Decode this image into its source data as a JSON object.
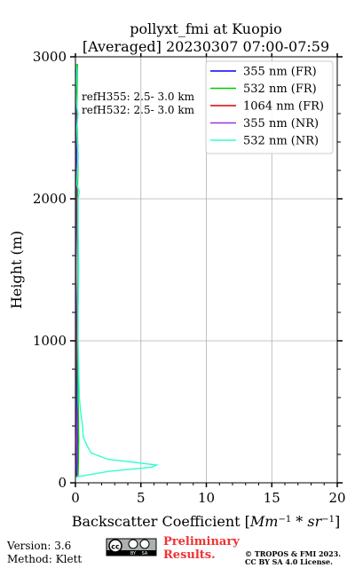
{
  "title_line1": "pollyxt_fmi at Kuopio",
  "title_line2": "[Averaged] 20230307 07:00-07:59",
  "annotation_line1": "refH355:  2.5- 3.0 km",
  "annotation_line2": "refH532:  2.5- 3.0 km",
  "footer": {
    "version": "Version: 3.6",
    "method": "Method: Klett",
    "preliminary_line1": "Preliminary",
    "preliminary_line2": "Results.",
    "copyright_line1": "© TROPOS & FMI 2023.",
    "copyright_line2": "CC BY SA 4.0 License.",
    "license_badge": "cc-by-sa-icon",
    "badge_sub1": "BY",
    "badge_sub2": "SA"
  },
  "chart_data": {
    "type": "line",
    "orientation": "vertical-profile",
    "xlabel_main": "Backscatter Coefficient [",
    "xlabel_unit_base1": "Mm",
    "xlabel_unit_sup1": "−1",
    "xlabel_unit_mid": " * ",
    "xlabel_unit_base2": "sr",
    "xlabel_unit_sup2": "−1",
    "xlabel_close": "]",
    "ylabel": "Height (m)",
    "xlim": [
      0,
      20
    ],
    "ylim": [
      0,
      3000
    ],
    "xticks": [
      "0",
      "5",
      "10",
      "15",
      "20"
    ],
    "xtick_values": [
      0,
      5,
      10,
      15,
      20
    ],
    "yticks": [
      "0",
      "1000",
      "2000",
      "3000"
    ],
    "ytick_values": [
      0,
      1000,
      2000,
      3000
    ],
    "grid": true,
    "legend_position": "top-right",
    "series": [
      {
        "name": "355 nm (FR)",
        "color": "#0000ff",
        "points": [
          [
            0.1,
            40
          ],
          [
            0.15,
            300
          ],
          [
            0.1,
            600
          ],
          [
            0.1,
            1000
          ],
          [
            0.05,
            1500
          ],
          [
            0.1,
            2000
          ],
          [
            0.08,
            2300
          ],
          [
            0.1,
            2600
          ],
          [
            0.05,
            2950
          ]
        ]
      },
      {
        "name": "532 nm (FR)",
        "color": "#00cc00",
        "points": [
          [
            0.2,
            40
          ],
          [
            0.25,
            300
          ],
          [
            0.2,
            600
          ],
          [
            0.15,
            1000
          ],
          [
            0.2,
            1500
          ],
          [
            0.15,
            2000
          ],
          [
            0.2,
            2300
          ],
          [
            0.1,
            2600
          ],
          [
            0.15,
            2950
          ]
        ]
      },
      {
        "name": "1064 nm (FR)",
        "color": "#dd0000",
        "points": [
          [
            0.05,
            40
          ],
          [
            0.1,
            300
          ],
          [
            0.05,
            600
          ],
          [
            0.08,
            1000
          ],
          [
            0.05,
            1500
          ],
          [
            0.08,
            2000
          ],
          [
            0.05,
            2300
          ],
          [
            0.07,
            2600
          ],
          [
            0.05,
            2950
          ]
        ]
      },
      {
        "name": "355 nm (NR)",
        "color": "#9933dd",
        "points": [
          [
            0.05,
            40
          ],
          [
            0.1,
            300
          ],
          [
            0.05,
            600
          ],
          [
            0.05,
            1000
          ],
          [
            0.05,
            1500
          ],
          [
            0.05,
            2000
          ],
          [
            0.05,
            2300
          ],
          [
            0.05,
            2600
          ],
          [
            0.05,
            2950
          ]
        ]
      },
      {
        "name": "532 nm (NR)",
        "color": "#33ffcc",
        "points": [
          [
            0.0,
            40
          ],
          [
            2.5,
            80
          ],
          [
            5.8,
            110
          ],
          [
            6.2,
            125
          ],
          [
            4.0,
            150
          ],
          [
            2.5,
            165
          ],
          [
            1.2,
            210
          ],
          [
            0.9,
            260
          ],
          [
            0.6,
            320
          ],
          [
            0.55,
            400
          ],
          [
            0.4,
            500
          ],
          [
            0.3,
            600
          ],
          [
            0.25,
            800
          ],
          [
            0.2,
            1000
          ],
          [
            0.2,
            1200
          ],
          [
            0.25,
            1500
          ],
          [
            0.2,
            1800
          ],
          [
            0.2,
            2000
          ],
          [
            0.3,
            2050
          ],
          [
            0.1,
            2100
          ],
          [
            0.2,
            2300
          ],
          [
            0.1,
            2500
          ],
          [
            0.2,
            2600
          ],
          [
            0.1,
            2650
          ],
          [
            0.05,
            2750
          ],
          [
            0.1,
            2900
          ],
          [
            0.05,
            2950
          ]
        ]
      }
    ]
  }
}
